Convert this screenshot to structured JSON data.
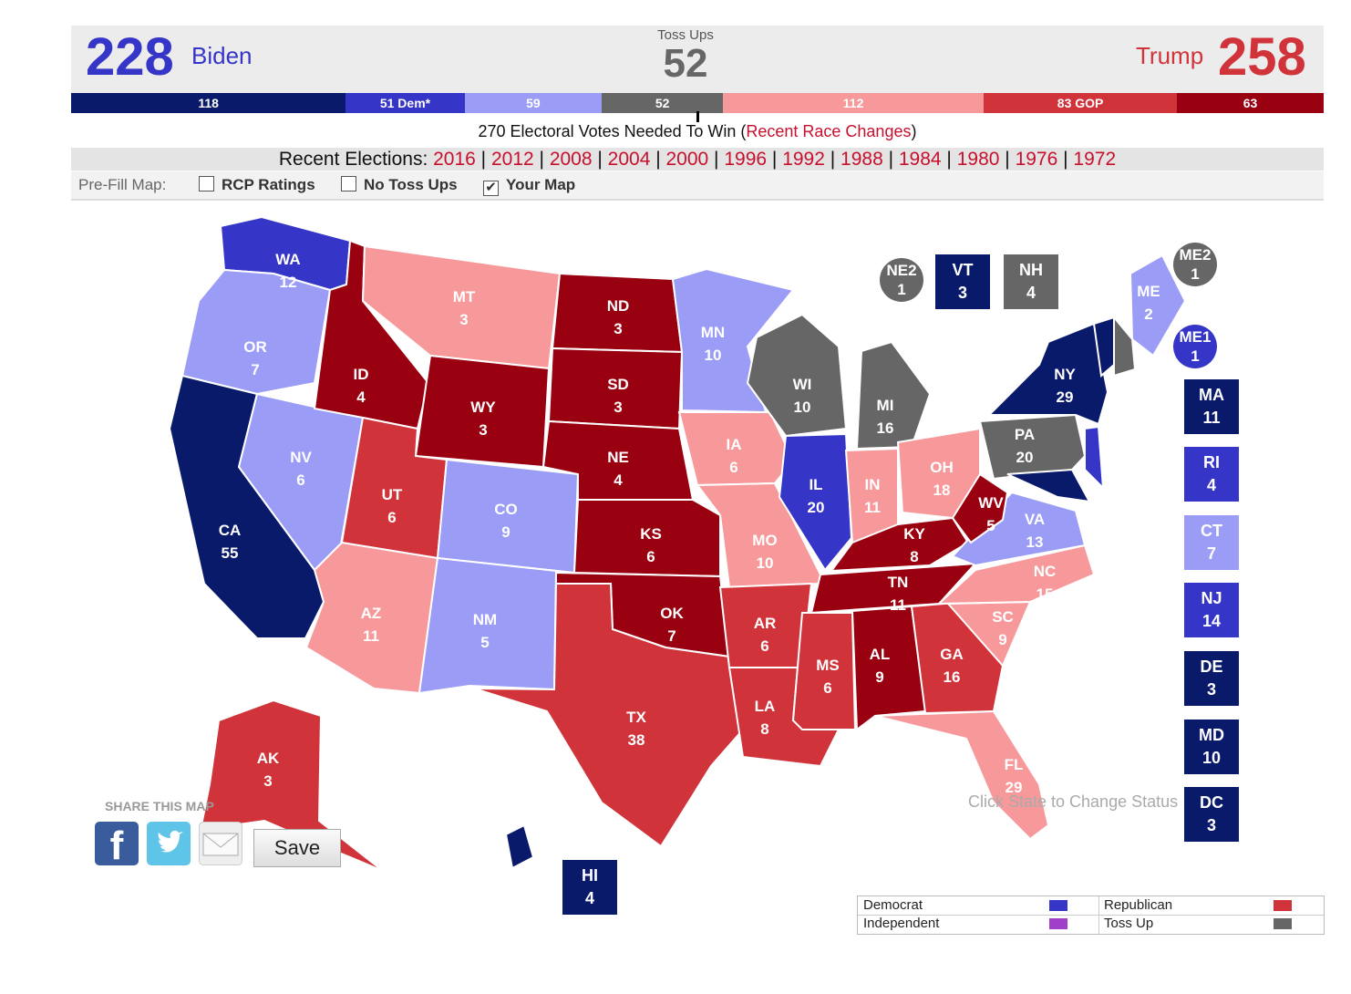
{
  "colors": {
    "safe_dem": "#0a1a6b",
    "likely_dem": "#3535c8",
    "lean_dem": "#9a9cf5",
    "toss_up": "#666666",
    "lean_gop": "#f7999b",
    "likely_gop": "#d0343a",
    "safe_gop": "#990010",
    "independent": "#a040c8"
  },
  "header": {
    "biden_total": "228",
    "biden_name": "Biden",
    "tossups_label": "Toss Ups",
    "tossups_total": "52",
    "trump_name": "Trump",
    "trump_total": "258"
  },
  "bar": [
    {
      "label": "118",
      "value": 118,
      "color": "#0a1a6b"
    },
    {
      "label": "51 Dem*",
      "value": 51,
      "color": "#3535c8"
    },
    {
      "label": "59",
      "value": 59,
      "color": "#9a9cf5"
    },
    {
      "label": "52",
      "value": 52,
      "color": "#666666"
    },
    {
      "label": "112",
      "value": 112,
      "color": "#f7999b"
    },
    {
      "label": "83 GOP",
      "value": 83,
      "color": "#d0343a"
    },
    {
      "label": "63",
      "value": 63,
      "color": "#990010"
    }
  ],
  "needed": {
    "text": "270 Electoral Votes Needed To Win (",
    "link": "Recent Race Changes",
    "close": ")"
  },
  "elections": {
    "label": "Recent Elections:",
    "years": [
      "2016",
      "2012",
      "2008",
      "2004",
      "2000",
      "1996",
      "1992",
      "1988",
      "1984",
      "1980",
      "1976",
      "1972"
    ]
  },
  "prefill": {
    "label": "Pre-Fill Map:",
    "options": [
      {
        "label": "RCP Ratings",
        "checked": false
      },
      {
        "label": "No Toss Ups",
        "checked": false
      },
      {
        "label": "Your Map",
        "checked": true
      }
    ],
    "check_glyph": "✔"
  },
  "states": {
    "WA": {
      "abbr": "WA",
      "ev": "12"
    },
    "OR": {
      "abbr": "OR",
      "ev": "7"
    },
    "CA": {
      "abbr": "CA",
      "ev": "55"
    },
    "NV": {
      "abbr": "NV",
      "ev": "6"
    },
    "ID": {
      "abbr": "ID",
      "ev": "4"
    },
    "MT": {
      "abbr": "MT",
      "ev": "3"
    },
    "WY": {
      "abbr": "WY",
      "ev": "3"
    },
    "UT": {
      "abbr": "UT",
      "ev": "6"
    },
    "AZ": {
      "abbr": "AZ",
      "ev": "11"
    },
    "CO": {
      "abbr": "CO",
      "ev": "9"
    },
    "NM": {
      "abbr": "NM",
      "ev": "5"
    },
    "ND": {
      "abbr": "ND",
      "ev": "3"
    },
    "SD": {
      "abbr": "SD",
      "ev": "3"
    },
    "NE": {
      "abbr": "NE",
      "ev": "4"
    },
    "KS": {
      "abbr": "KS",
      "ev": "6"
    },
    "OK": {
      "abbr": "OK",
      "ev": "7"
    },
    "TX": {
      "abbr": "TX",
      "ev": "38"
    },
    "MN": {
      "abbr": "MN",
      "ev": "10"
    },
    "IA": {
      "abbr": "IA",
      "ev": "6"
    },
    "MO": {
      "abbr": "MO",
      "ev": "10"
    },
    "AR": {
      "abbr": "AR",
      "ev": "6"
    },
    "LA": {
      "abbr": "LA",
      "ev": "8"
    },
    "WI": {
      "abbr": "WI",
      "ev": "10"
    },
    "IL": {
      "abbr": "IL",
      "ev": "20"
    },
    "MI": {
      "abbr": "MI",
      "ev": "16"
    },
    "IN": {
      "abbr": "IN",
      "ev": "11"
    },
    "OH": {
      "abbr": "OH",
      "ev": "18"
    },
    "KY": {
      "abbr": "KY",
      "ev": "8"
    },
    "TN": {
      "abbr": "TN",
      "ev": "11"
    },
    "MS": {
      "abbr": "MS",
      "ev": "6"
    },
    "AL": {
      "abbr": "AL",
      "ev": "9"
    },
    "GA": {
      "abbr": "GA",
      "ev": "16"
    },
    "FL": {
      "abbr": "FL",
      "ev": "29"
    },
    "SC": {
      "abbr": "SC",
      "ev": "9"
    },
    "NC": {
      "abbr": "NC",
      "ev": "15"
    },
    "VA": {
      "abbr": "VA",
      "ev": "13"
    },
    "WV": {
      "abbr": "WV",
      "ev": "5"
    },
    "PA": {
      "abbr": "PA",
      "ev": "20"
    },
    "NY": {
      "abbr": "NY",
      "ev": "29"
    },
    "ME": {
      "abbr": "ME",
      "ev": "2"
    },
    "AK": {
      "abbr": "AK",
      "ev": "3"
    }
  },
  "boxes": {
    "NE2": {
      "abbr": "NE2",
      "ev": "1"
    },
    "VT": {
      "abbr": "VT",
      "ev": "3"
    },
    "NH": {
      "abbr": "NH",
      "ev": "4"
    },
    "ME2": {
      "abbr": "ME2",
      "ev": "1"
    },
    "ME1": {
      "abbr": "ME1",
      "ev": "1"
    },
    "MA": {
      "abbr": "MA",
      "ev": "11"
    },
    "RI": {
      "abbr": "RI",
      "ev": "4"
    },
    "CT": {
      "abbr": "CT",
      "ev": "7"
    },
    "NJ": {
      "abbr": "NJ",
      "ev": "14"
    },
    "DE": {
      "abbr": "DE",
      "ev": "3"
    },
    "MD": {
      "abbr": "MD",
      "ev": "10"
    },
    "DC": {
      "abbr": "DC",
      "ev": "3"
    },
    "HI": {
      "abbr": "HI",
      "ev": "4"
    }
  },
  "hint": "Click State to Change Status",
  "share": {
    "label": "SHARE THIS MAP",
    "facebook_glyph": "f",
    "save_label": "Save"
  },
  "legend": {
    "democrat": "Democrat",
    "republican": "Republican",
    "independent": "Independent",
    "tossup": "Toss Up"
  }
}
